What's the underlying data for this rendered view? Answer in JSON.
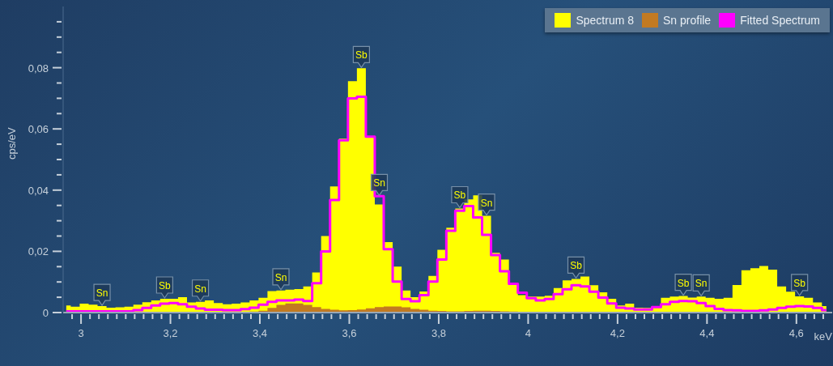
{
  "chart_data": {
    "type": "area",
    "xlabel": "keV",
    "ylabel": "cps/eV",
    "legend": "top right",
    "xlim": [
      2.96,
      4.68
    ],
    "ylim": [
      0,
      0.1
    ],
    "xticks": [
      {
        "value": 2.98,
        "label": null
      },
      3,
      {
        "value": 3.02,
        "label": null
      },
      {
        "value": 3.04,
        "label": null
      },
      {
        "value": 3.06,
        "label": null
      },
      {
        "value": 3.08,
        "label": null
      },
      {
        "value": 3.1,
        "label": null
      },
      {
        "value": 3.12,
        "label": null
      },
      {
        "value": 3.14,
        "label": null
      },
      {
        "value": 3.16,
        "label": null
      },
      {
        "value": 3.18,
        "label": null
      },
      {
        "value": 3.2,
        "label": "3,2"
      },
      {
        "value": 3.22,
        "label": null
      },
      {
        "value": 3.24,
        "label": null
      },
      {
        "value": 3.26,
        "label": null
      },
      {
        "value": 3.28,
        "label": null
      },
      {
        "value": 3.3,
        "label": null
      },
      {
        "value": 3.32,
        "label": null
      },
      {
        "value": 3.34,
        "label": null
      },
      {
        "value": 3.36,
        "label": null
      },
      {
        "value": 3.38,
        "label": null
      },
      {
        "value": 3.4,
        "label": "3,4"
      },
      {
        "value": 3.42,
        "label": null
      },
      {
        "value": 3.44,
        "label": null
      },
      {
        "value": 3.46,
        "label": null
      },
      {
        "value": 3.48,
        "label": null
      },
      {
        "value": 3.5,
        "label": null
      },
      {
        "value": 3.52,
        "label": null
      },
      {
        "value": 3.54,
        "label": null
      },
      {
        "value": 3.56,
        "label": null
      },
      {
        "value": 3.58,
        "label": null
      },
      {
        "value": 3.6,
        "label": "3,6"
      },
      {
        "value": 3.62,
        "label": null
      },
      {
        "value": 3.64,
        "label": null
      },
      {
        "value": 3.66,
        "label": null
      },
      {
        "value": 3.68,
        "label": null
      },
      {
        "value": 3.7,
        "label": null
      },
      {
        "value": 3.72,
        "label": null
      },
      {
        "value": 3.74,
        "label": null
      },
      {
        "value": 3.76,
        "label": null
      },
      {
        "value": 3.78,
        "label": null
      },
      {
        "value": 3.8,
        "label": "3,8"
      },
      {
        "value": 3.82,
        "label": null
      },
      {
        "value": 3.84,
        "label": null
      },
      {
        "value": 3.86,
        "label": null
      },
      {
        "value": 3.88,
        "label": null
      },
      {
        "value": 3.9,
        "label": null
      },
      {
        "value": 3.92,
        "label": null
      },
      {
        "value": 3.94,
        "label": null
      },
      {
        "value": 3.96,
        "label": null
      },
      {
        "value": 3.98,
        "label": null
      },
      4,
      {
        "value": 4.02,
        "label": null
      },
      {
        "value": 4.04,
        "label": null
      },
      {
        "value": 4.06,
        "label": null
      },
      {
        "value": 4.08,
        "label": null
      },
      {
        "value": 4.1,
        "label": null
      },
      {
        "value": 4.12,
        "label": null
      },
      {
        "value": 4.14,
        "label": null
      },
      {
        "value": 4.16,
        "label": null
      },
      {
        "value": 4.18,
        "label": null
      },
      {
        "value": 4.2,
        "label": "4,2"
      },
      {
        "value": 4.22,
        "label": null
      },
      {
        "value": 4.24,
        "label": null
      },
      {
        "value": 4.26,
        "label": null
      },
      {
        "value": 4.28,
        "label": null
      },
      {
        "value": 4.3,
        "label": null
      },
      {
        "value": 4.32,
        "label": null
      },
      {
        "value": 4.34,
        "label": null
      },
      {
        "value": 4.36,
        "label": null
      },
      {
        "value": 4.38,
        "label": null
      },
      {
        "value": 4.4,
        "label": "4,4"
      },
      {
        "value": 4.42,
        "label": null
      },
      {
        "value": 4.44,
        "label": null
      },
      {
        "value": 4.46,
        "label": null
      },
      {
        "value": 4.48,
        "label": null
      },
      {
        "value": 4.5,
        "label": null
      },
      {
        "value": 4.52,
        "label": null
      },
      {
        "value": 4.54,
        "label": null
      },
      {
        "value": 4.56,
        "label": null
      },
      {
        "value": 4.58,
        "label": null
      },
      {
        "value": 4.6,
        "label": "4,6"
      },
      {
        "value": 4.62,
        "label": null
      },
      {
        "value": 4.64,
        "label": null
      },
      {
        "value": 4.66,
        "label": null
      }
    ],
    "yticks": [
      0,
      {
        "value": 0.005,
        "label": null
      },
      {
        "value": 0.01,
        "label": null
      },
      {
        "value": 0.015,
        "label": null
      },
      {
        "value": 0.02,
        "label": "0,02"
      },
      {
        "value": 0.025,
        "label": null
      },
      {
        "value": 0.03,
        "label": null
      },
      {
        "value": 0.035,
        "label": null
      },
      {
        "value": 0.04,
        "label": "0,04"
      },
      {
        "value": 0.045,
        "label": null
      },
      {
        "value": 0.05,
        "label": null
      },
      {
        "value": 0.055,
        "label": null
      },
      {
        "value": 0.06,
        "label": "0,06"
      },
      {
        "value": 0.065,
        "label": null
      },
      {
        "value": 0.07,
        "label": null
      },
      {
        "value": 0.075,
        "label": null
      },
      {
        "value": 0.08,
        "label": "0,08"
      },
      {
        "value": 0.085,
        "label": null
      },
      {
        "value": 0.09,
        "label": null
      },
      {
        "value": 0.095,
        "label": null
      }
    ],
    "x": [
      2.967,
      2.987,
      3.007,
      3.027,
      3.047,
      3.067,
      3.087,
      3.107,
      3.127,
      3.147,
      3.167,
      3.187,
      3.207,
      3.227,
      3.247,
      3.267,
      3.287,
      3.307,
      3.327,
      3.347,
      3.367,
      3.387,
      3.407,
      3.427,
      3.447,
      3.467,
      3.487,
      3.507,
      3.527,
      3.547,
      3.567,
      3.587,
      3.607,
      3.627,
      3.647,
      3.667,
      3.687,
      3.707,
      3.727,
      3.747,
      3.767,
      3.787,
      3.807,
      3.827,
      3.847,
      3.867,
      3.887,
      3.907,
      3.927,
      3.947,
      3.967,
      3.987,
      4.007,
      4.027,
      4.047,
      4.067,
      4.087,
      4.107,
      4.127,
      4.147,
      4.167,
      4.187,
      4.207,
      4.227,
      4.247,
      4.267,
      4.287,
      4.307,
      4.327,
      4.347,
      4.367,
      4.387,
      4.407,
      4.427,
      4.447,
      4.467,
      4.487,
      4.507,
      4.527,
      4.547,
      4.567,
      4.587,
      4.607,
      4.627,
      4.647,
      4.667
    ],
    "series": [
      {
        "name": "Spectrum 8",
        "color": "#ffff00",
        "values": [
          0.0023,
          0.0019,
          0.0029,
          0.0026,
          0.0021,
          0.0016,
          0.0017,
          0.0019,
          0.0026,
          0.0034,
          0.004,
          0.0045,
          0.0045,
          0.005,
          0.0033,
          0.0035,
          0.004,
          0.0031,
          0.0027,
          0.0029,
          0.0033,
          0.004,
          0.0048,
          0.007,
          0.0072,
          0.0075,
          0.0077,
          0.0085,
          0.0131,
          0.025,
          0.0412,
          0.0568,
          0.0756,
          0.0798,
          0.0575,
          0.0353,
          0.023,
          0.015,
          0.0072,
          0.005,
          0.0069,
          0.012,
          0.0205,
          0.0277,
          0.034,
          0.037,
          0.0383,
          0.0316,
          0.0195,
          0.0173,
          0.0096,
          0.0057,
          0.0052,
          0.0052,
          0.0055,
          0.008,
          0.0105,
          0.011,
          0.0118,
          0.0089,
          0.0066,
          0.0045,
          0.0023,
          0.0029,
          0.0016,
          0.0015,
          0.0021,
          0.0048,
          0.0052,
          0.0054,
          0.0049,
          0.0052,
          0.0048,
          0.0045,
          0.0048,
          0.009,
          0.0138,
          0.0145,
          0.0152,
          0.014,
          0.0085,
          0.0068,
          0.0053,
          0.0048,
          0.0033,
          0.0021
        ]
      },
      {
        "name": "Sn profile",
        "color": "#c27a22",
        "values": [
          0.0002,
          0.0002,
          0.0002,
          0.0002,
          0.0002,
          0.0002,
          0.0002,
          0.0002,
          0.0002,
          0.0002,
          0.0002,
          0.0002,
          0.0002,
          0.0002,
          0.0002,
          0.0002,
          0.0002,
          0.0002,
          0.0002,
          0.0002,
          0.0002,
          0.0003,
          0.0006,
          0.0015,
          0.0025,
          0.003,
          0.003,
          0.0025,
          0.0018,
          0.0012,
          0.0009,
          0.0007,
          0.0008,
          0.001,
          0.0014,
          0.0018,
          0.002,
          0.002,
          0.0017,
          0.0012,
          0.0009,
          0.0006,
          0.0005,
          0.0004,
          0.0004,
          0.0005,
          0.0006,
          0.0006,
          0.0005,
          0.0004,
          0.0003,
          0.0002,
          0.0002,
          0.0002,
          0.0002,
          0.0002,
          0.0002,
          0.0002,
          0.0002,
          0.0002,
          0.0002,
          0.0002,
          0.0002,
          0.0002,
          0.0002,
          0.0002,
          0.0002,
          0.0002,
          0.0002,
          0.0002,
          0.0002,
          0.0002,
          0.0002,
          0.0002,
          0.0002,
          0.0002,
          0.0002,
          0.0002,
          0.0002,
          0.0002,
          0.0002,
          0.0002,
          0.0002,
          0.0002,
          0.0002,
          0.0002
        ]
      },
      {
        "name": "Fitted Spectrum",
        "type": "step",
        "color": "#ff00ff",
        "values": [
          0.0004,
          0.0004,
          0.0004,
          0.0004,
          0.0004,
          0.0004,
          0.0004,
          0.0004,
          0.0008,
          0.0015,
          0.0023,
          0.0029,
          0.0031,
          0.0027,
          0.0019,
          0.0013,
          0.0009,
          0.0009,
          0.0008,
          0.0008,
          0.0011,
          0.0016,
          0.0026,
          0.0035,
          0.004,
          0.004,
          0.0042,
          0.0038,
          0.0096,
          0.02,
          0.0368,
          0.0563,
          0.07,
          0.0705,
          0.0575,
          0.038,
          0.0207,
          0.0101,
          0.0044,
          0.0037,
          0.0057,
          0.0101,
          0.0173,
          0.0267,
          0.0333,
          0.0348,
          0.0311,
          0.0254,
          0.0188,
          0.0135,
          0.0094,
          0.0065,
          0.0047,
          0.004,
          0.0044,
          0.006,
          0.0076,
          0.0089,
          0.0085,
          0.0068,
          0.0049,
          0.003,
          0.0016,
          0.0013,
          0.001,
          0.001,
          0.0018,
          0.0027,
          0.0035,
          0.0038,
          0.0037,
          0.0031,
          0.0021,
          0.0012,
          0.0008,
          0.0007,
          0.0005,
          0.0005,
          0.0007,
          0.001,
          0.0015,
          0.0019,
          0.0021,
          0.002,
          0.0015,
          0.0008
        ]
      }
    ],
    "annotations": [
      {
        "text": "Sn",
        "x": 3.047,
        "y": 0.0021
      },
      {
        "text": "Sb",
        "x": 3.187,
        "y": 0.0045
      },
      {
        "text": "Sn",
        "x": 3.267,
        "y": 0.0035
      },
      {
        "text": "Sn",
        "x": 3.447,
        "y": 0.0072
      },
      {
        "text": "Sb",
        "x": 3.627,
        "y": 0.0798
      },
      {
        "text": "Sn",
        "x": 3.667,
        "y": 0.038
      },
      {
        "text": "Sb",
        "x": 3.847,
        "y": 0.034
      },
      {
        "text": "Sn",
        "x": 3.907,
        "y": 0.0316
      },
      {
        "text": "Sb",
        "x": 4.107,
        "y": 0.011
      },
      {
        "text": "Sb",
        "x": 4.347,
        "y": 0.0054
      },
      {
        "text": "Sn",
        "x": 4.387,
        "y": 0.0052
      },
      {
        "text": "Sb",
        "x": 4.607,
        "y": 0.0053
      }
    ]
  }
}
